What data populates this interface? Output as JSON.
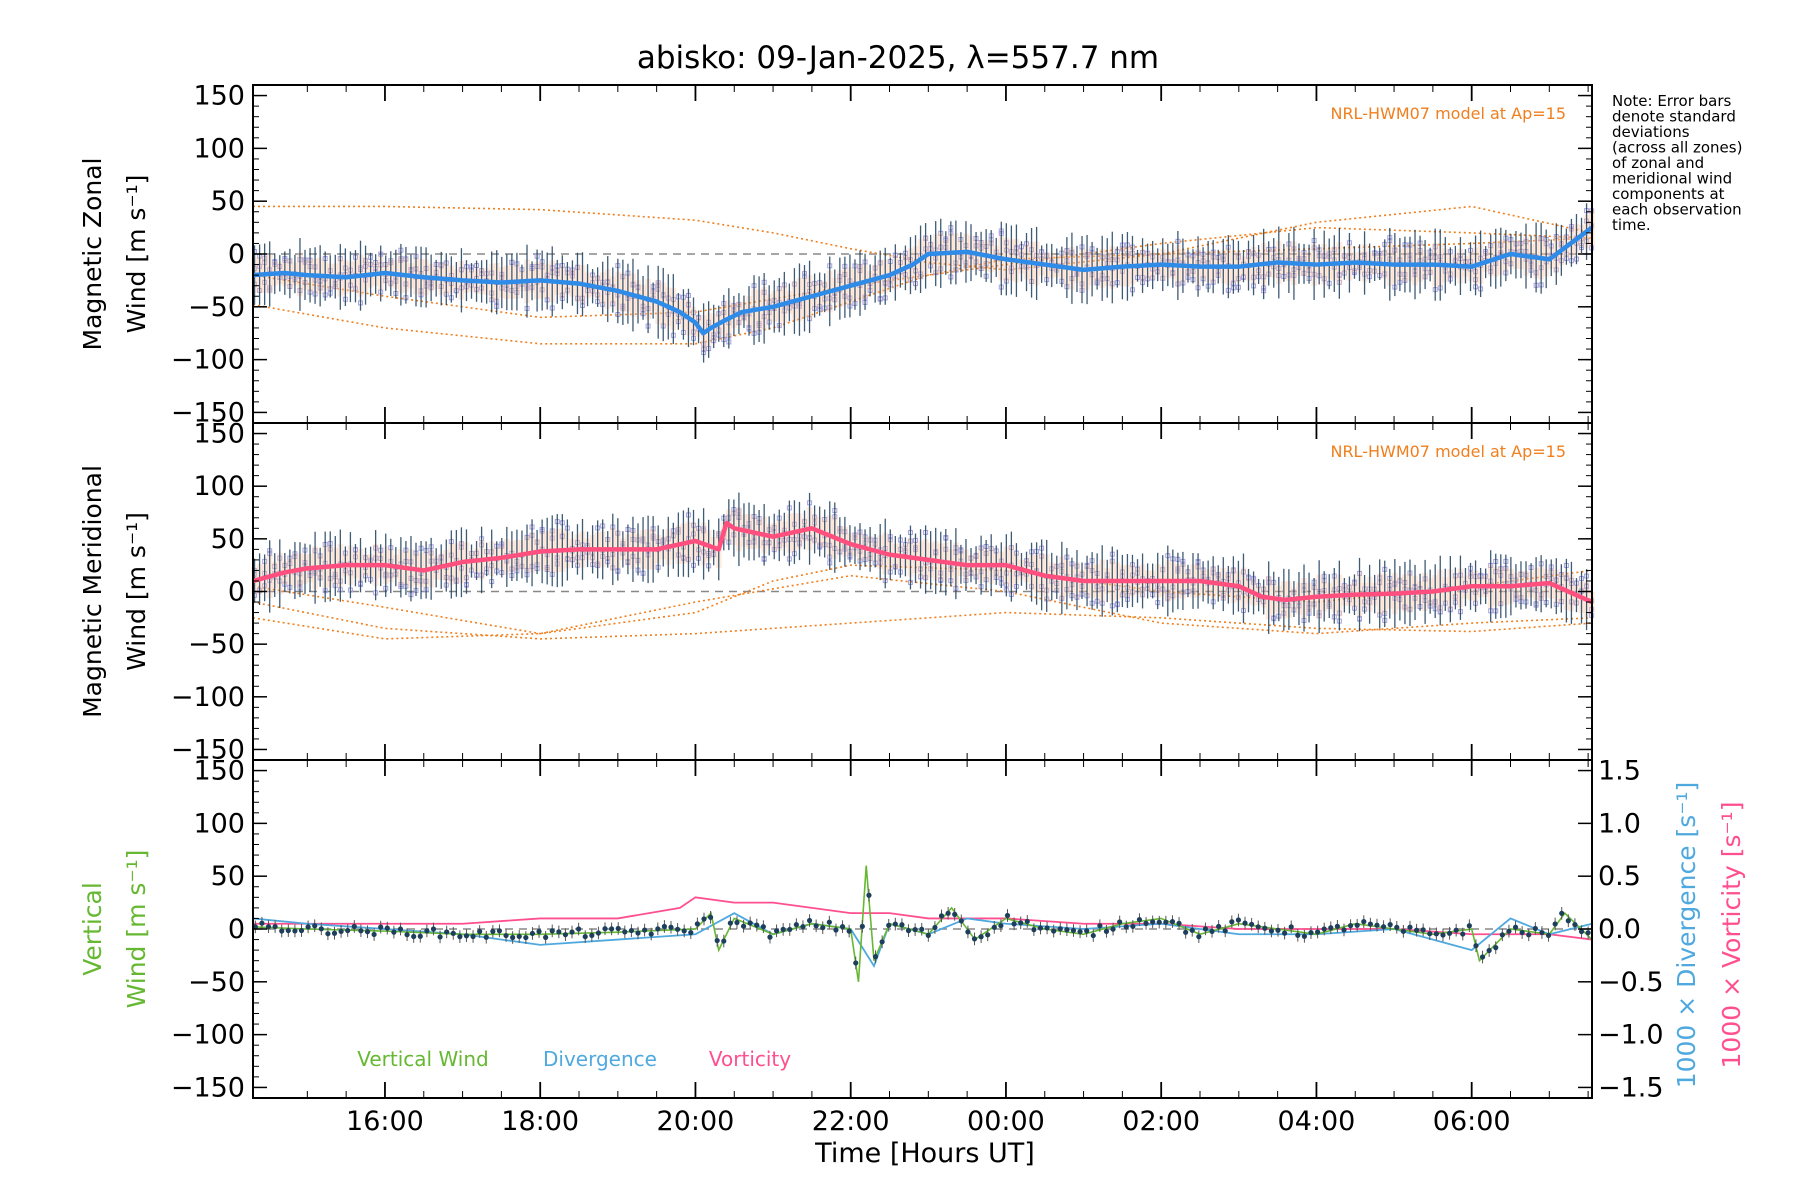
{
  "title": "abisko: 09-Jan-2025, λ=557.7 nm",
  "note_lines": [
    "Note: Error bars",
    "denote standard",
    "deviations",
    "(across all zones)",
    "of zonal and",
    "meridional wind",
    "components at",
    "each observation",
    "time."
  ],
  "model_label": "NRL-HWM07 model at Ap=15",
  "xlabel": "Time [Hours UT]",
  "colors": {
    "zonal": "#2e8be8",
    "meridional": "#ff4f7f",
    "vertical": "#66b832",
    "divergence": "#4fa9df",
    "vorticity": "#ff4f8f",
    "model": "#f07f1e",
    "zone_scatter": "#a9a4e0",
    "error_bars": "#1d3f5c"
  },
  "chart_data": [
    {
      "type": "line",
      "name": "zonal",
      "ylabel": [
        "Magnetic Zonal",
        "Wind [m s⁻¹]"
      ],
      "ylim": [
        -160,
        160
      ],
      "xlim": [
        14.3,
        31.55
      ],
      "x_tick_labels": [
        "16:00",
        "18:00",
        "20:00",
        "22:00",
        "00:00",
        "02:00",
        "04:00",
        "06:00"
      ],
      "y_ticks": [
        -150,
        -100,
        -50,
        0,
        50,
        100,
        150
      ],
      "series": [
        {
          "name": "zonal",
          "x": [
            14.3,
            14.7,
            15.0,
            15.5,
            16.0,
            16.5,
            17.0,
            17.5,
            18.0,
            18.5,
            19.0,
            19.5,
            19.8,
            20.0,
            20.1,
            20.2,
            20.4,
            20.6,
            21.0,
            21.5,
            22.0,
            22.5,
            22.8,
            23.0,
            23.5,
            24.0,
            24.5,
            25.0,
            25.5,
            26.0,
            26.5,
            27.0,
            27.5,
            28.0,
            28.5,
            29.0,
            29.5,
            30.0,
            30.5,
            31.0,
            31.55
          ],
          "y": [
            -20,
            -18,
            -20,
            -22,
            -18,
            -22,
            -25,
            -27,
            -25,
            -28,
            -35,
            -45,
            -55,
            -65,
            -75,
            -70,
            -62,
            -55,
            -50,
            -40,
            -30,
            -20,
            -10,
            0,
            2,
            -5,
            -10,
            -15,
            -12,
            -10,
            -12,
            -12,
            -8,
            -10,
            -8,
            -10,
            -10,
            -12,
            0,
            -5,
            25
          ]
        },
        {
          "name": "NRL-HWM07 model a",
          "x": [
            14.3,
            16,
            18,
            20,
            21,
            22,
            23,
            24,
            26,
            28,
            30,
            31.55
          ],
          "y": [
            45,
            45,
            42,
            32,
            20,
            5,
            -8,
            -15,
            0,
            30,
            45,
            20
          ]
        },
        {
          "name": "NRL-HWM07 model b",
          "x": [
            14.3,
            16,
            18,
            20,
            21,
            22,
            23,
            24,
            26,
            28,
            30,
            31.55
          ],
          "y": [
            -48,
            -70,
            -85,
            -85,
            -70,
            -45,
            -20,
            -5,
            0,
            5,
            10,
            15
          ]
        },
        {
          "name": "NRL-HWM07 model c",
          "x": [
            14.3,
            16,
            18,
            20,
            22,
            24,
            26,
            28,
            30,
            31.55
          ],
          "y": [
            -20,
            -40,
            -60,
            -55,
            -30,
            -10,
            10,
            25,
            20,
            15
          ]
        }
      ]
    },
    {
      "type": "line",
      "name": "meridional",
      "ylabel": [
        "Magnetic Meridional",
        "Wind [m s⁻¹]"
      ],
      "ylim": [
        -160,
        160
      ],
      "xlim": [
        14.3,
        31.55
      ],
      "y_ticks": [
        -150,
        -100,
        -50,
        0,
        50,
        100,
        150
      ],
      "series": [
        {
          "name": "meridional",
          "x": [
            14.3,
            14.7,
            15.0,
            15.5,
            16.0,
            16.5,
            17.0,
            17.5,
            18.0,
            18.5,
            19.0,
            19.5,
            20.0,
            20.3,
            20.4,
            20.5,
            21.0,
            21.5,
            22.0,
            22.5,
            23.0,
            23.5,
            24.0,
            24.5,
            25.0,
            25.5,
            26.0,
            26.5,
            27.0,
            27.3,
            27.6,
            28.0,
            28.5,
            29.0,
            29.5,
            30.0,
            30.5,
            31.0,
            31.55
          ],
          "y": [
            10,
            18,
            22,
            25,
            25,
            20,
            28,
            32,
            38,
            40,
            40,
            40,
            48,
            40,
            65,
            60,
            52,
            60,
            45,
            35,
            30,
            25,
            25,
            15,
            10,
            10,
            10,
            10,
            5,
            -5,
            -8,
            -5,
            -3,
            -2,
            0,
            5,
            5,
            8,
            -10
          ]
        },
        {
          "name": "NRL-HWM07 model a",
          "x": [
            14.3,
            16,
            18,
            20,
            22,
            24,
            26,
            28,
            30,
            31.55
          ],
          "y": [
            -10,
            -35,
            -45,
            -40,
            -30,
            -20,
            -25,
            -35,
            -38,
            -30
          ]
        },
        {
          "name": "NRL-HWM07 model b",
          "x": [
            14.3,
            16,
            18,
            20,
            22,
            24,
            26,
            28,
            30,
            31.55
          ],
          "y": [
            -25,
            -45,
            -40,
            -10,
            15,
            0,
            -30,
            -40,
            -30,
            -25
          ]
        },
        {
          "name": "NRL-HWM07 model c",
          "x": [
            14.3,
            16,
            18,
            20,
            21,
            22,
            24,
            26,
            28,
            30,
            31.55
          ],
          "y": [
            5,
            -15,
            -40,
            -20,
            10,
            25,
            20,
            0,
            -10,
            5,
            20
          ]
        }
      ]
    },
    {
      "type": "line",
      "name": "vertical",
      "ylabel": [
        "Vertical",
        "Wind [m s⁻¹]"
      ],
      "ylabel_right": [
        "1000 × Divergence [s⁻¹]",
        "1000 × Vorticity [s⁻¹]"
      ],
      "ylim": [
        -160,
        160
      ],
      "ylim_right": [
        -1.6,
        1.6
      ],
      "xlim": [
        14.3,
        31.55
      ],
      "y_ticks": [
        -150,
        -100,
        -50,
        0,
        50,
        100,
        150
      ],
      "y_ticks_right": [
        "1.5",
        "1.0",
        "0.5",
        "0.0",
        "−0.5",
        "−1.0",
        "−1.5"
      ],
      "legend": [
        "Vertical Wind",
        "Divergence",
        "Vorticity"
      ],
      "series": [
        {
          "name": "Vertical Wind",
          "x": [
            14.3,
            15,
            16,
            17,
            18,
            19,
            20,
            20.2,
            20.3,
            20.5,
            21,
            21.5,
            22,
            22.1,
            22.2,
            22.3,
            22.5,
            23,
            23.3,
            23.6,
            24,
            24.5,
            25,
            25.5,
            26,
            26.5,
            27,
            27.5,
            28,
            28.5,
            29,
            29.5,
            30,
            30.1,
            30.5,
            31,
            31.2,
            31.55
          ],
          "y": [
            2,
            0,
            -2,
            -5,
            -5,
            -3,
            0,
            15,
            -20,
            10,
            -5,
            5,
            0,
            -50,
            60,
            -30,
            5,
            -5,
            20,
            -10,
            10,
            0,
            -5,
            5,
            10,
            -5,
            5,
            0,
            -5,
            5,
            0,
            -5,
            0,
            -30,
            0,
            -5,
            15,
            -10
          ]
        },
        {
          "name": "Divergence",
          "x": [
            14.3,
            15,
            16,
            17,
            18,
            19,
            20,
            20.5,
            21,
            21.5,
            22,
            22.3,
            22.5,
            23,
            23.5,
            24,
            25,
            26,
            27,
            28,
            29,
            30,
            30.5,
            31,
            31.55
          ],
          "y": [
            0.1,
            0.05,
            0.0,
            -0.05,
            -0.15,
            -0.1,
            -0.05,
            0.15,
            -0.05,
            0.05,
            0.0,
            -0.35,
            0.05,
            -0.05,
            0.1,
            0.05,
            0.0,
            0.05,
            -0.05,
            -0.05,
            0.0,
            -0.2,
            0.1,
            -0.05,
            0.05
          ]
        },
        {
          "name": "Vorticity",
          "x": [
            14.3,
            15,
            16,
            17,
            18,
            19,
            19.8,
            20.0,
            20.5,
            21,
            21.5,
            22,
            22.5,
            23,
            24,
            25,
            26,
            27,
            28,
            29,
            30,
            31,
            31.55
          ],
          "y": [
            0.05,
            0.05,
            0.05,
            0.05,
            0.1,
            0.1,
            0.2,
            0.3,
            0.25,
            0.25,
            0.2,
            0.15,
            0.15,
            0.1,
            0.1,
            0.05,
            0.05,
            0.0,
            0.0,
            0.0,
            -0.05,
            -0.05,
            -0.1
          ]
        }
      ]
    }
  ]
}
